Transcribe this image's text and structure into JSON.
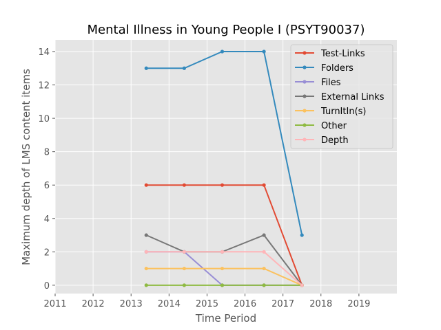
{
  "chart_data": {
    "type": "line",
    "title": "Mental Illness in Young People I (PSYT90037)",
    "xlabel": "Time Period",
    "ylabel": "Maximum depth of LMS content items",
    "xlim": [
      2011,
      2020
    ],
    "ylim": [
      -0.5,
      14.7
    ],
    "xticks": [
      2011,
      2012,
      2013,
      2014,
      2015,
      2016,
      2017,
      2018,
      2019
    ],
    "yticks": [
      0,
      2,
      4,
      6,
      8,
      10,
      12,
      14
    ],
    "grid": true,
    "legend_position": "top-right",
    "x": [
      2013.4,
      2014.4,
      2015.4,
      2016.5,
      2017.5
    ],
    "series": [
      {
        "name": "Test-Links",
        "color": "#e24a33",
        "values": [
          6,
          6,
          6,
          6,
          0
        ]
      },
      {
        "name": "Folders",
        "color": "#348abd",
        "values": [
          13,
          13,
          14,
          14,
          3
        ]
      },
      {
        "name": "Files",
        "color": "#988ed5",
        "values": [
          2,
          2,
          0,
          0,
          0
        ]
      },
      {
        "name": "External Links",
        "color": "#777777",
        "values": [
          3,
          2,
          2,
          3,
          0
        ]
      },
      {
        "name": "TurnItIn(s)",
        "color": "#fbc15e",
        "values": [
          1,
          1,
          1,
          1,
          0
        ]
      },
      {
        "name": "Other",
        "color": "#8eba42",
        "values": [
          0,
          0,
          0,
          0,
          0
        ]
      },
      {
        "name": "Depth",
        "color": "#ffb5b8",
        "values": [
          2,
          2,
          2,
          2,
          0
        ]
      }
    ]
  }
}
